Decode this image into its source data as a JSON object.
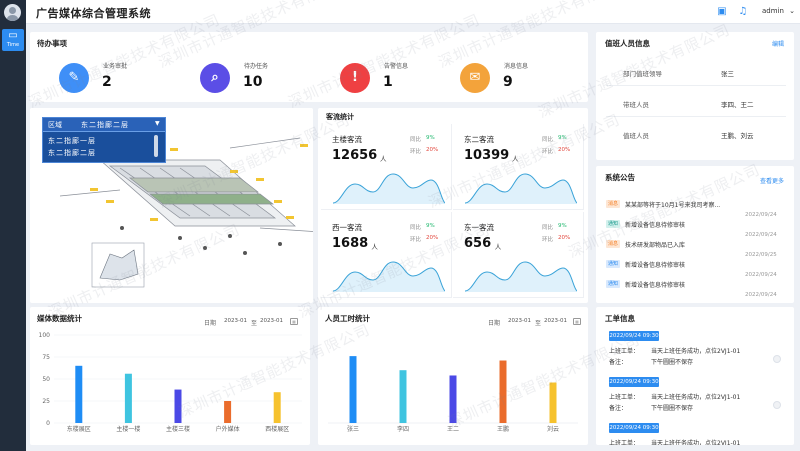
{
  "app": {
    "title": "广告媒体综合管理系统",
    "nav_label": "Time",
    "user_name": "admin",
    "icons": [
      "screen-icon",
      "bell-icon",
      "chevron-down-icon"
    ]
  },
  "todo": {
    "title": "待办事项",
    "items": [
      {
        "label": "业务审批",
        "count": "2",
        "color": "#3f8ff7",
        "icon": "document-icon"
      },
      {
        "label": "待办任务",
        "count": "10",
        "color": "#5b4ee6",
        "icon": "inbox-icon"
      },
      {
        "label": "告警信息",
        "count": "1",
        "color": "#ef4042",
        "icon": "alert-icon"
      },
      {
        "label": "消息信息",
        "count": "9",
        "color": "#f3a33b",
        "icon": "mail-icon"
      }
    ]
  },
  "duty": {
    "title": "值班人员信息",
    "edit_link": "编辑",
    "rows": [
      {
        "label": "部门值班领导",
        "value": "张三"
      },
      {
        "label": "带班人员",
        "value": "李四、王二"
      },
      {
        "label": "值班人员",
        "value": "王鹏、刘云"
      }
    ]
  },
  "map": {
    "region_label": "区域",
    "region_value": "东二指廊二层",
    "options": [
      "东二指廊一层",
      "东二指廊二层"
    ]
  },
  "flow": {
    "title": "客流统计",
    "compare_label": "同比",
    "ring_label": "环比",
    "unit": "人",
    "cells": [
      {
        "name": "主楼客流",
        "value": "12656",
        "yoy": "9%",
        "mom": "20%"
      },
      {
        "name": "东二客流",
        "value": "10399",
        "yoy": "9%",
        "mom": "20%"
      },
      {
        "name": "西一客流",
        "value": "1688",
        "yoy": "9%",
        "mom": "20%"
      },
      {
        "name": "东一客流",
        "value": "656",
        "yoy": "9%",
        "mom": "20%"
      }
    ]
  },
  "notices": {
    "title": "系统公告",
    "more_link": "查看更多",
    "items": [
      {
        "tag": "消息",
        "tag_color": "#f5822a",
        "tag_bg": "#fde6d4",
        "text": "某某部等将于10月1号来我司考察...",
        "date": "2022/09/24"
      },
      {
        "tag": "通知",
        "tag_color": "#1b9a8d",
        "tag_bg": "#d3f1ed",
        "text": "新增设备信息待修审核",
        "date": "2022/09/24"
      },
      {
        "tag": "消息",
        "tag_color": "#f5822a",
        "tag_bg": "#fde6d4",
        "text": "技术研发部物品已入库",
        "date": "2022/09/25"
      },
      {
        "tag": "通知",
        "tag_color": "#2d8cf0",
        "tag_bg": "#d9e9fd",
        "text": "新增设备信息待修审核",
        "date": "2022/09/24"
      },
      {
        "tag": "通知",
        "tag_color": "#2d8cf0",
        "tag_bg": "#d9e9fd",
        "text": "新增设备信息待修审核",
        "date": "2022/09/24"
      }
    ]
  },
  "media_stats": {
    "title": "媒体数据统计",
    "date_label": "日期",
    "date_start": "2023-01",
    "date_sep": "至",
    "date_end": "2023-01"
  },
  "work_stats": {
    "title": "人员工时统计",
    "date_label": "日期",
    "date_start": "2023-01",
    "date_sep": "至",
    "date_end": "2023-01"
  },
  "chart_data": [
    {
      "type": "bar",
      "title": "媒体数据统计",
      "categories": [
        "东楼展区",
        "主楼一楼",
        "主楼三楼",
        "户外媒体",
        "西楼展区"
      ],
      "values": [
        65,
        56,
        38,
        25,
        35
      ],
      "colors": [
        "#1f8df5",
        "#3fc4e0",
        "#4b49e6",
        "#ea6c2c",
        "#f6c22e"
      ],
      "ylim": [
        0,
        100
      ],
      "yticks": [
        0,
        25,
        50,
        75,
        100
      ],
      "xlabel": "",
      "ylabel": "",
      "grid": true
    },
    {
      "type": "bar",
      "title": "人员工时统计",
      "categories": [
        "张三",
        "李四",
        "王二",
        "王鹏",
        "刘云"
      ],
      "values": [
        76,
        60,
        54,
        71,
        46
      ],
      "colors": [
        "#1f8df5",
        "#3fc4e0",
        "#4b49e6",
        "#ea6c2c",
        "#f6c22e"
      ],
      "ylim": [
        0,
        100
      ],
      "yticks": [],
      "xlabel": "",
      "ylabel": "",
      "grid": false
    }
  ],
  "work_orders": {
    "title": "工单信息",
    "items": [
      {
        "time": "2022/09/24  09:30",
        "line1_label": "上班工单：",
        "line1_value": "当天上班任务成功，点位2VJ1-01",
        "line2_label": "备注：",
        "line2_value": "下午圆圈不保存"
      },
      {
        "time": "2022/09/24  09:30",
        "line1_label": "上班工单：",
        "line1_value": "当天上班任务成功，点位2VJ1-01",
        "line2_label": "备注：",
        "line2_value": "下午圆圈不保存"
      },
      {
        "time": "2022/09/24  09:30",
        "line1_label": "上班工单：",
        "line1_value": "当天上班任务成功，点位2VJ1-01",
        "line2_label": "",
        "line2_value": ""
      }
    ]
  },
  "watermark": "深圳市计通智能技术有限公司"
}
